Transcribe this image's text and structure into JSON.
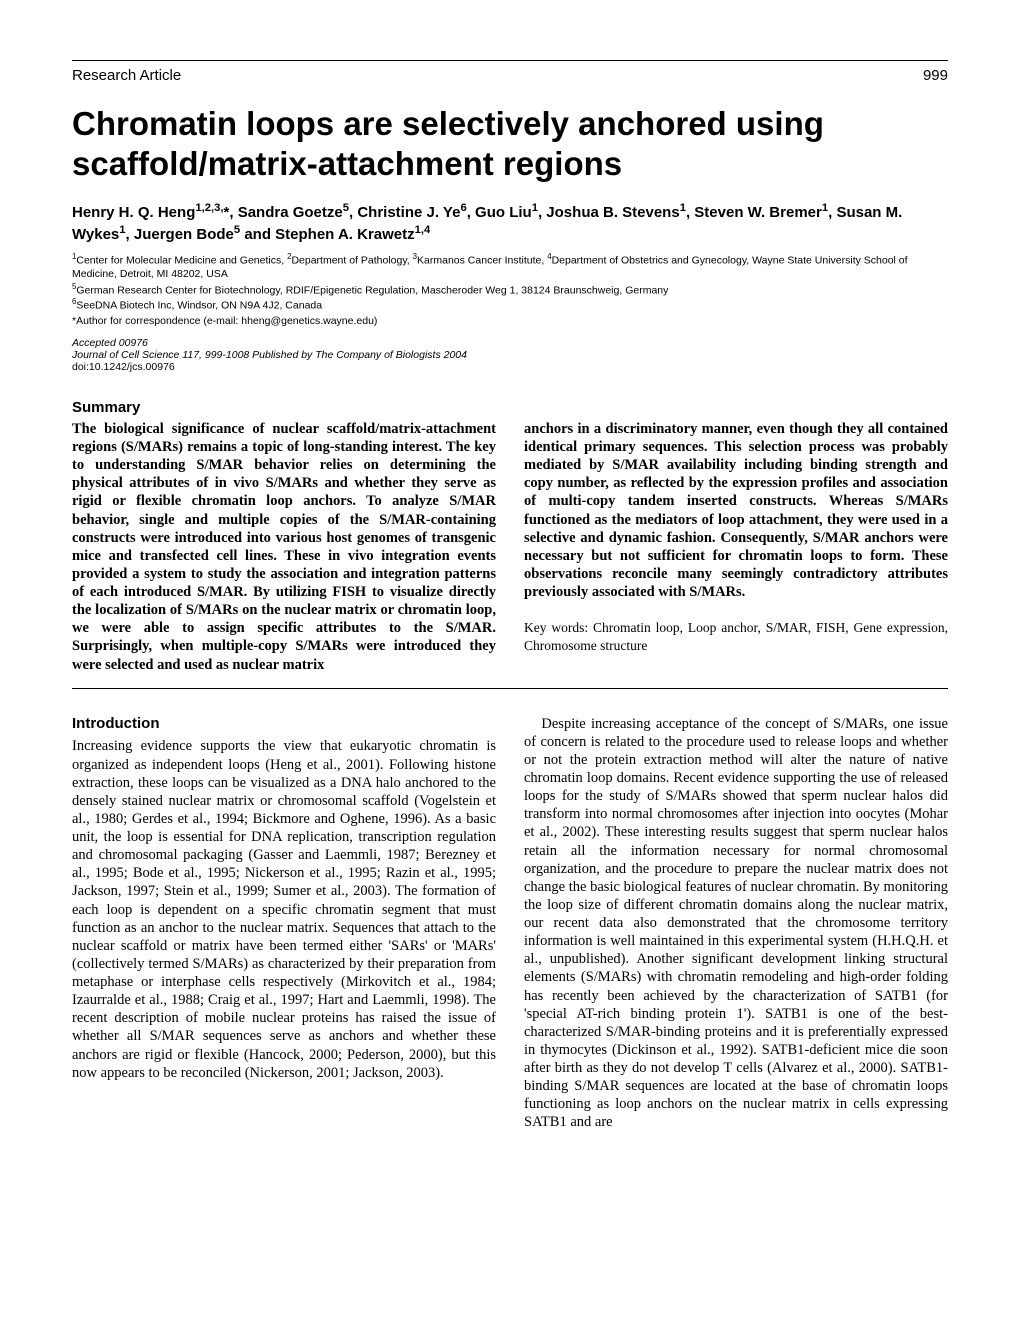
{
  "header": {
    "section": "Research Article",
    "page": "999"
  },
  "title": "Chromatin loops are selectively anchored using scaffold/matrix-attachment regions",
  "authors_html": "Henry H. Q. Heng<sup>1,2,3,</sup>*, Sandra Goetze<sup>5</sup>, Christine J. Ye<sup>6</sup>, Guo Liu<sup>1</sup>, Joshua B. Stevens<sup>1</sup>, Steven W. Bremer<sup>1</sup>, Susan M. Wykes<sup>1</sup>, Juergen Bode<sup>5</sup> and Stephen A. Krawetz<sup>1,4</sup>",
  "affiliations": [
    "<sup>1</sup>Center for Molecular Medicine and Genetics, <sup>2</sup>Department of Pathology, <sup>3</sup>Karmanos Cancer Institute, <sup>4</sup>Department of Obstetrics and Gynecology, Wayne State University School of Medicine, Detroit, MI 48202, USA",
    "<sup>5</sup>German Research Center for Biotechnology, RDIF/Epigenetic Regulation, Mascheroder Weg 1, 38124 Braunschweig, Germany",
    "<sup>6</sup>SeeDNA Biotech Inc, Windsor, ON N9A 4J2, Canada"
  ],
  "corresponding": "*Author for correspondence (e-mail: hheng@genetics.wayne.edu)",
  "accepted": "Accepted 00976",
  "journal": "Journal of Cell Science 117, 999-1008 Published by The Company of Biologists 2004",
  "doi": "doi:10.1242/jcs.00976",
  "summary": {
    "heading": "Summary",
    "left": "The biological significance of nuclear scaffold/matrix-attachment regions (S/MARs) remains a topic of long-standing interest. The key to understanding S/MAR behavior relies on determining the physical attributes of in vivo S/MARs and whether they serve as rigid or flexible chromatin loop anchors. To analyze S/MAR behavior, single and multiple copies of the S/MAR-containing constructs were introduced into various host genomes of transgenic mice and transfected cell lines. These in vivo integration events provided a system to study the association and integration patterns of each introduced S/MAR. By utilizing FISH to visualize directly the localization of S/MARs on the nuclear matrix or chromatin loop, we were able to assign specific attributes to the S/MAR. Surprisingly, when multiple-copy S/MARs were introduced they were selected and used as nuclear matrix",
    "right": "anchors in a discriminatory manner, even though they all contained identical primary sequences. This selection process was probably mediated by S/MAR availability including binding strength and copy number, as reflected by the expression profiles and association of multi-copy tandem inserted constructs. Whereas S/MARs functioned as the mediators of loop attachment, they were used in a selective and dynamic fashion. Consequently, S/MAR anchors were necessary but not sufficient for chromatin loops to form. These observations reconcile many seemingly contradictory attributes previously associated with S/MARs.",
    "keywords": "Key words: Chromatin loop, Loop anchor, S/MAR, FISH, Gene expression, Chromosome structure"
  },
  "introduction": {
    "heading": "Introduction",
    "left": "Increasing evidence supports the view that eukaryotic chromatin is organized as independent loops (Heng et al., 2001). Following histone extraction, these loops can be visualized as a DNA halo anchored to the densely stained nuclear matrix or chromosomal scaffold (Vogelstein et al., 1980; Gerdes et al., 1994; Bickmore and Oghene, 1996). As a basic unit, the loop is essential for DNA replication, transcription regulation and chromosomal packaging (Gasser and Laemmli, 1987; Berezney et al., 1995; Bode et al., 1995; Nickerson et al., 1995; Razin et al., 1995; Jackson, 1997; Stein et al., 1999; Sumer et al., 2003). The formation of each loop is dependent on a specific chromatin segment that must function as an anchor to the nuclear matrix. Sequences that attach to the nuclear scaffold or matrix have been termed either 'SARs' or 'MARs' (collectively termed S/MARs) as characterized by their preparation from metaphase or interphase cells respectively (Mirkovitch et al., 1984; Izaurralde et al., 1988; Craig et al., 1997; Hart and Laemmli, 1998). The recent description of mobile nuclear proteins has raised the issue of whether all S/MAR sequences serve as anchors and whether these anchors are rigid or flexible (Hancock, 2000; Pederson, 2000), but this now appears to be reconciled (Nickerson, 2001; Jackson, 2003).",
    "right": "Despite increasing acceptance of the concept of S/MARs, one issue of concern is related to the procedure used to release loops and whether or not the protein extraction method will alter the nature of native chromatin loop domains. Recent evidence supporting the use of released loops for the study of S/MARs showed that sperm nuclear halos did transform into normal chromosomes after injection into oocytes (Mohar et al., 2002). These interesting results suggest that sperm nuclear halos retain all the information necessary for normal chromosomal organization, and the procedure to prepare the nuclear matrix does not change the basic biological features of nuclear chromatin. By monitoring the loop size of different chromatin domains along the nuclear matrix, our recent data also demonstrated that the chromosome territory information is well maintained in this experimental system (H.H.Q.H. et al., unpublished). Another significant development linking structural elements (S/MARs) with chromatin remodeling and high-order folding has recently been achieved by the characterization of SATB1 (for 'special AT-rich binding protein 1'). SATB1 is one of the best-characterized S/MAR-binding proteins and it is preferentially expressed in thymocytes (Dickinson et al., 1992). SATB1-deficient mice die soon after birth as they do not develop T cells (Alvarez et al., 2000). SATB1-binding S/MAR sequences are located at the base of chromatin loops functioning as loop anchors on the nuclear matrix in cells expressing SATB1 and are"
  }
}
